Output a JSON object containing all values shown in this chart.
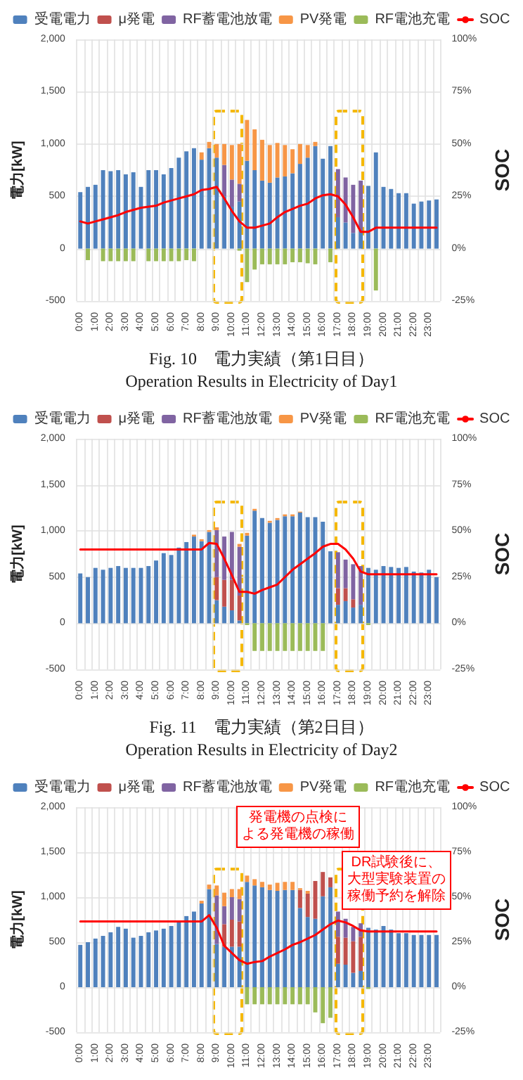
{
  "chart_data": [
    {
      "type": "bar",
      "stacked": true,
      "title": "Fig. 10　電力実績（第1日目）",
      "subtitle": "Operation Results in Electricity of Day1",
      "ylabel": "電力[kW]",
      "y2label": "SOC",
      "legend": "top",
      "grid": true,
      "marker": "none",
      "categories": [
        "0:00",
        null,
        "1:00",
        null,
        "2:00",
        null,
        "3:00",
        null,
        "4:00",
        null,
        "5:00",
        null,
        "6:00",
        null,
        "7:00",
        null,
        "8:00",
        null,
        "9:00",
        null,
        "10:00",
        null,
        "11:00",
        null,
        "12:00",
        null,
        "13:00",
        null,
        "14:00",
        null,
        "15:00",
        null,
        "16:00",
        null,
        "17:00",
        null,
        "18:00",
        null,
        "19:00",
        null,
        "20:00",
        null,
        "21:00",
        null,
        "22:00",
        null,
        "23:00",
        null
      ],
      "ylim": [
        -500,
        2000
      ],
      "yticks": [
        -500,
        0,
        500,
        {
          "value": 1000,
          "label": "1,000"
        },
        {
          "value": 1500,
          "label": "1,500"
        },
        {
          "value": 2000,
          "label": "2,000"
        }
      ],
      "y2lim": [
        -25,
        100
      ],
      "y2ticks": [
        {
          "value": -25,
          "label": "-25%"
        },
        {
          "value": 0,
          "label": "0%"
        },
        {
          "value": 25,
          "label": "25%"
        },
        {
          "value": 50,
          "label": "50%"
        },
        {
          "value": 75,
          "label": "75%"
        },
        {
          "value": 100,
          "label": "100%"
        }
      ],
      "series": [
        {
          "name": "受電電力",
          "color": "#4f81bd",
          "values": [
            540,
            590,
            610,
            750,
            740,
            750,
            710,
            730,
            590,
            750,
            750,
            710,
            770,
            870,
            930,
            960,
            850,
            960,
            870,
            500,
            400,
            450,
            840,
            750,
            650,
            630,
            680,
            690,
            720,
            810,
            870,
            980,
            860,
            980,
            300,
            250,
            150,
            170,
            600,
            920,
            590,
            570,
            530,
            530,
            430,
            450,
            460,
            470
          ]
        },
        {
          "name": "μ発電",
          "color": "#c0504d",
          "values": [
            0,
            0,
            0,
            0,
            0,
            0,
            0,
            0,
            0,
            0,
            0,
            0,
            0,
            0,
            0,
            0,
            0,
            0,
            0,
            0,
            0,
            0,
            0,
            0,
            0,
            0,
            0,
            0,
            0,
            0,
            0,
            0,
            0,
            0,
            0,
            0,
            0,
            0,
            0,
            0,
            0,
            0,
            0,
            0,
            0,
            0,
            0,
            0
          ]
        },
        {
          "name": "RF蓄電池放電",
          "color": "#8064a2",
          "values": [
            0,
            0,
            0,
            0,
            0,
            0,
            0,
            0,
            0,
            0,
            0,
            0,
            0,
            0,
            0,
            0,
            0,
            0,
            0,
            300,
            260,
            170,
            0,
            0,
            0,
            0,
            0,
            0,
            0,
            0,
            0,
            0,
            0,
            0,
            460,
            430,
            460,
            480,
            0,
            0,
            0,
            0,
            0,
            0,
            0,
            0,
            0,
            0
          ]
        },
        {
          "name": "PV発電",
          "color": "#f79646",
          "values": [
            0,
            0,
            0,
            0,
            0,
            0,
            0,
            0,
            0,
            0,
            0,
            0,
            0,
            0,
            0,
            0,
            70,
            60,
            130,
            200,
            330,
            380,
            390,
            390,
            390,
            360,
            330,
            300,
            230,
            190,
            120,
            40,
            0,
            0,
            0,
            0,
            0,
            0,
            0,
            0,
            0,
            0,
            0,
            0,
            0,
            0,
            0,
            0
          ]
        },
        {
          "name": "RF電池充電",
          "color": "#9bbb59",
          "values": [
            0,
            -110,
            0,
            -120,
            -120,
            -120,
            -120,
            -120,
            0,
            -120,
            -120,
            -120,
            -120,
            -120,
            -110,
            -120,
            0,
            0,
            0,
            0,
            0,
            -20,
            -320,
            -200,
            -150,
            -150,
            -150,
            -150,
            -130,
            -130,
            -140,
            -150,
            0,
            -130,
            0,
            0,
            0,
            0,
            0,
            -400,
            0,
            0,
            0,
            0,
            0,
            0,
            0,
            0
          ]
        },
        {
          "name": "SOC",
          "type": "line",
          "axis": "y2",
          "color": "#ff0000",
          "values": [
            13,
            12,
            13,
            14,
            15,
            16,
            17.5,
            18.5,
            19.5,
            20,
            20.5,
            22,
            23,
            24,
            25,
            26,
            28,
            28.5,
            29.5,
            24,
            18,
            13,
            10,
            10,
            11,
            12,
            15,
            17.5,
            19,
            20.5,
            21.5,
            24,
            25.5,
            26,
            25,
            21,
            15,
            8,
            8,
            10,
            10,
            10,
            10,
            10,
            10,
            10,
            10,
            10
          ]
        }
      ]
    },
    {
      "type": "bar",
      "stacked": true,
      "title": "Fig. 11　電力実績（第2日目）",
      "subtitle": "Operation Results in Electricity of Day2",
      "ylabel": "電力[kW]",
      "y2label": "SOC",
      "legend": "top",
      "grid": true,
      "marker": "none",
      "categories": [
        "0:00",
        null,
        "1:00",
        null,
        "2:00",
        null,
        "3:00",
        null,
        "4:00",
        null,
        "5:00",
        null,
        "6:00",
        null,
        "7:00",
        null,
        "8:00",
        null,
        "9:00",
        null,
        "10:00",
        null,
        "11:00",
        null,
        "12:00",
        null,
        "13:00",
        null,
        "14:00",
        null,
        "15:00",
        null,
        "16:00",
        null,
        "17:00",
        null,
        "18:00",
        null,
        "19:00",
        null,
        "20:00",
        null,
        "21:00",
        null,
        "22:00",
        null,
        "23:00",
        null
      ],
      "ylim": [
        -500,
        2000
      ],
      "yticks": [
        -500,
        0,
        500,
        {
          "value": 1000,
          "label": "1,000"
        },
        {
          "value": 1500,
          "label": "1,500"
        },
        {
          "value": 2000,
          "label": "2,000"
        }
      ],
      "y2lim": [
        -25,
        100
      ],
      "y2ticks": [
        {
          "value": -25,
          "label": "-25%"
        },
        {
          "value": 0,
          "label": "0%"
        },
        {
          "value": 25,
          "label": "25%"
        },
        {
          "value": 50,
          "label": "50%"
        },
        {
          "value": 75,
          "label": "75%"
        },
        {
          "value": 100,
          "label": "100%"
        }
      ],
      "series": [
        {
          "name": "受電電力",
          "color": "#4f81bd",
          "values": [
            540,
            500,
            600,
            580,
            600,
            620,
            600,
            600,
            600,
            620,
            680,
            760,
            740,
            820,
            880,
            940,
            890,
            990,
            250,
            180,
            140,
            30,
            950,
            1220,
            1140,
            1090,
            1120,
            1160,
            1160,
            1200,
            1150,
            1150,
            1100,
            780,
            200,
            240,
            170,
            200,
            600,
            580,
            620,
            610,
            600,
            610,
            560,
            550,
            580,
            500
          ]
        },
        {
          "name": "μ発電",
          "color": "#c0504d",
          "values": [
            0,
            0,
            0,
            0,
            0,
            0,
            0,
            0,
            0,
            0,
            0,
            0,
            0,
            0,
            0,
            0,
            0,
            0,
            250,
            290,
            330,
            270,
            0,
            0,
            0,
            0,
            0,
            0,
            0,
            0,
            0,
            0,
            0,
            0,
            180,
            140,
            90,
            0,
            0,
            0,
            0,
            0,
            0,
            0,
            0,
            0,
            0,
            0
          ]
        },
        {
          "name": "RF蓄電池放電",
          "color": "#8064a2",
          "values": [
            0,
            0,
            0,
            0,
            0,
            0,
            0,
            0,
            0,
            0,
            0,
            0,
            0,
            0,
            0,
            0,
            0,
            0,
            510,
            470,
            520,
            530,
            0,
            0,
            0,
            0,
            0,
            0,
            0,
            0,
            0,
            0,
            0,
            0,
            390,
            310,
            380,
            420,
            0,
            0,
            0,
            0,
            0,
            0,
            0,
            0,
            0,
            0
          ]
        },
        {
          "name": "PV発電",
          "color": "#f79646",
          "values": [
            0,
            0,
            0,
            0,
            0,
            0,
            0,
            0,
            0,
            0,
            0,
            0,
            0,
            0,
            0,
            20,
            20,
            20,
            30,
            0,
            0,
            30,
            30,
            20,
            0,
            20,
            20,
            20,
            20,
            10,
            0,
            0,
            0,
            0,
            0,
            0,
            0,
            0,
            0,
            0,
            0,
            0,
            0,
            0,
            0,
            0,
            0,
            0
          ]
        },
        {
          "name": "RF電池充電",
          "color": "#9bbb59",
          "values": [
            0,
            0,
            0,
            0,
            0,
            0,
            0,
            0,
            0,
            0,
            0,
            0,
            0,
            0,
            0,
            0,
            0,
            0,
            0,
            0,
            0,
            0,
            -20,
            -300,
            -300,
            -300,
            -300,
            -300,
            -300,
            -300,
            -300,
            -300,
            -300,
            0,
            0,
            0,
            0,
            0,
            -20,
            0,
            0,
            0,
            0,
            0,
            0,
            0,
            0,
            0
          ]
        },
        {
          "name": "SOC",
          "type": "line",
          "axis": "y2",
          "color": "#ff0000",
          "values": [
            40,
            40,
            40,
            40,
            40,
            40,
            40,
            40,
            40,
            40,
            40,
            40,
            40,
            40,
            40,
            40,
            40,
            43.5,
            43,
            35,
            26,
            17,
            17,
            16,
            18,
            19.5,
            21,
            25,
            29,
            32,
            35,
            38,
            41.5,
            43,
            43,
            40,
            35,
            28,
            26.5,
            26.5,
            26.5,
            26.5,
            26.5,
            26.5,
            26.5,
            26.5,
            26.5,
            26.5
          ]
        }
      ]
    },
    {
      "type": "bar",
      "stacked": true,
      "ylabel": "電力[kW]",
      "y2label": "SOC",
      "legend": "top",
      "grid": true,
      "marker": "none",
      "categories": [
        "0:00",
        null,
        "1:00",
        null,
        "2:00",
        null,
        "3:00",
        null,
        "4:00",
        null,
        "5:00",
        null,
        "6:00",
        null,
        "7:00",
        null,
        "8:00",
        null,
        "9:00",
        null,
        "10:00",
        null,
        "11:00",
        null,
        "12:00",
        null,
        "13:00",
        null,
        "14:00",
        null,
        "15:00",
        null,
        "16:00",
        null,
        "17:00",
        null,
        "18:00",
        null,
        "19:00",
        null,
        "20:00",
        null,
        "21:00",
        null,
        "22:00",
        null,
        "23:00",
        null
      ],
      "ylim": [
        -500,
        2000
      ],
      "yticks": [
        -500,
        0,
        500,
        {
          "value": 1000,
          "label": "1,000"
        },
        {
          "value": 1500,
          "label": "1,500"
        },
        {
          "value": 2000,
          "label": "2,000"
        }
      ],
      "y2lim": [
        -25,
        100
      ],
      "y2ticks": [
        {
          "value": -25,
          "label": "-25%"
        },
        {
          "value": 0,
          "label": "0%"
        },
        {
          "value": 25,
          "label": "25%"
        },
        {
          "value": 50,
          "label": "50%"
        },
        {
          "value": 75,
          "label": "75%"
        },
        {
          "value": 100,
          "label": "100%"
        }
      ],
      "annotations": [
        "発電機の点検に",
        "よる発電機の稼働",
        "DR試験後に、",
        "大型実験装置の",
        "稼働予約を解除"
      ],
      "series": [
        {
          "name": "受電電力",
          "color": "#4f81bd",
          "values": [
            470,
            500,
            540,
            570,
            610,
            670,
            650,
            550,
            570,
            610,
            630,
            650,
            680,
            720,
            790,
            840,
            930,
            1090,
            480,
            450,
            450,
            450,
            1170,
            1130,
            1110,
            1080,
            1070,
            1080,
            1080,
            880,
            780,
            760,
            1010,
            1110,
            260,
            250,
            160,
            180,
            660,
            640,
            680,
            640,
            600,
            600,
            580,
            580,
            580,
            580
          ]
        },
        {
          "name": "μ発電",
          "color": "#c0504d",
          "values": [
            0,
            0,
            0,
            0,
            0,
            0,
            0,
            0,
            0,
            0,
            0,
            0,
            0,
            0,
            0,
            0,
            0,
            0,
            0,
            250,
            300,
            280,
            0,
            0,
            0,
            0,
            0,
            0,
            0,
            200,
            260,
            420,
            270,
            110,
            300,
            300,
            350,
            380,
            0,
            0,
            0,
            0,
            0,
            0,
            0,
            0,
            0,
            0
          ]
        },
        {
          "name": "RF蓄電池放電",
          "color": "#8064a2",
          "values": [
            0,
            0,
            0,
            0,
            0,
            0,
            0,
            0,
            0,
            0,
            0,
            0,
            0,
            0,
            0,
            0,
            0,
            0,
            540,
            200,
            250,
            250,
            0,
            0,
            0,
            0,
            0,
            0,
            0,
            0,
            0,
            0,
            0,
            0,
            280,
            210,
            160,
            150,
            0,
            0,
            0,
            0,
            0,
            0,
            0,
            0,
            0,
            0
          ]
        },
        {
          "name": "PV発電",
          "color": "#f79646",
          "values": [
            0,
            0,
            0,
            0,
            0,
            0,
            0,
            0,
            0,
            0,
            0,
            0,
            0,
            0,
            0,
            0,
            30,
            50,
            110,
            150,
            90,
            110,
            70,
            70,
            60,
            60,
            90,
            90,
            90,
            20,
            30,
            0,
            0,
            0,
            0,
            0,
            0,
            0,
            0,
            0,
            0,
            0,
            0,
            0,
            0,
            0,
            0,
            0
          ]
        },
        {
          "name": "RF電池充電",
          "color": "#9bbb59",
          "values": [
            0,
            0,
            0,
            0,
            0,
            0,
            0,
            0,
            0,
            0,
            0,
            0,
            0,
            0,
            0,
            0,
            0,
            0,
            0,
            0,
            0,
            0,
            -190,
            -190,
            -190,
            -190,
            -190,
            -190,
            -190,
            -190,
            -190,
            -280,
            -400,
            -340,
            0,
            0,
            0,
            0,
            -20,
            0,
            0,
            0,
            0,
            0,
            0,
            0,
            0,
            0
          ]
        },
        {
          "name": "SOC",
          "type": "line",
          "axis": "y2",
          "color": "#ff0000",
          "values": [
            36.5,
            36.5,
            36.5,
            36.5,
            36.5,
            36.5,
            36.5,
            36.5,
            36.5,
            36.5,
            36.5,
            36.5,
            36.5,
            36.5,
            36.5,
            36.5,
            36.5,
            40,
            33,
            23,
            19,
            15,
            13,
            14,
            14.5,
            17,
            19,
            21,
            23.5,
            25,
            27,
            29,
            32,
            35,
            37,
            36,
            34,
            31.5,
            31,
            31,
            31,
            31,
            31,
            31,
            31,
            31,
            31,
            31
          ]
        }
      ]
    }
  ]
}
